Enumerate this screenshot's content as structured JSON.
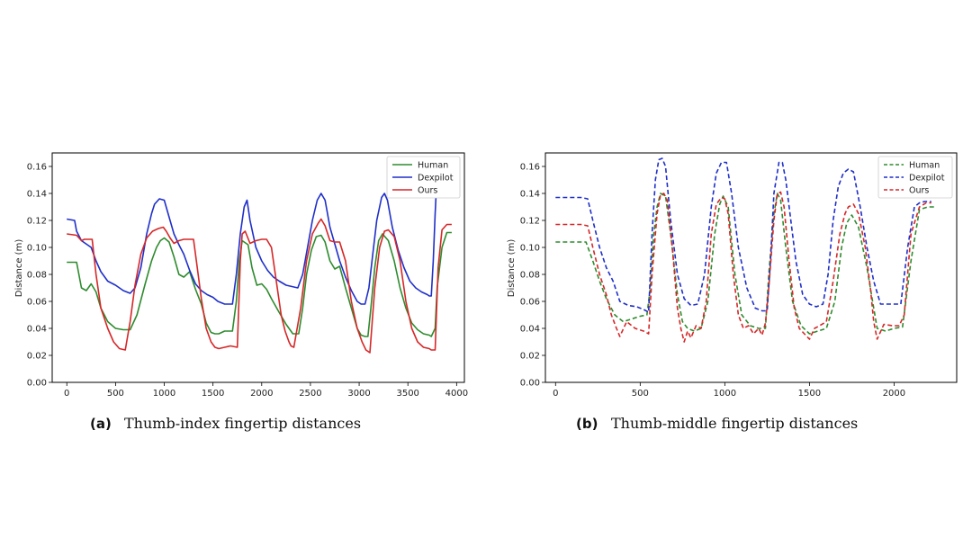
{
  "chart_data": [
    {
      "type": "line",
      "caption_letter": "(a)",
      "caption_text": "Thumb-index fingertip distances",
      "ylabel": "Distance (m)",
      "xlim": [
        -150,
        4080
      ],
      "ylim": [
        0,
        0.17
      ],
      "xticks": [
        0,
        500,
        1000,
        1500,
        2000,
        2500,
        3000,
        3500,
        4000
      ],
      "yticks": [
        0.0,
        0.02,
        0.04,
        0.06,
        0.08,
        0.1,
        0.12,
        0.14,
        0.16
      ],
      "ytick_labels": [
        "0.00",
        "0.02",
        "0.04",
        "0.06",
        "0.08",
        "0.10",
        "0.12",
        "0.14",
        "0.16"
      ],
      "grid": false,
      "legend_position": "top-right",
      "series": [
        {
          "name": "Human",
          "color": "#2e8b2e",
          "dash": "solid",
          "x": [
            0,
            100,
            150,
            200,
            250,
            300,
            350,
            420,
            500,
            580,
            650,
            720,
            800,
            870,
            920,
            960,
            1000,
            1050,
            1100,
            1150,
            1200,
            1260,
            1320,
            1380,
            1430,
            1480,
            1520,
            1560,
            1620,
            1700,
            1740,
            1770,
            1800,
            1860,
            1900,
            1950,
            2000,
            2050,
            2100,
            2170,
            2250,
            2320,
            2380,
            2420,
            2460,
            2510,
            2560,
            2610,
            2650,
            2700,
            2750,
            2800,
            2860,
            2920,
            2980,
            3020,
            3060,
            3090,
            3120,
            3160,
            3200,
            3240,
            3300,
            3360,
            3420,
            3480,
            3540,
            3600,
            3660,
            3720,
            3740,
            3780,
            3800,
            3850,
            3900,
            3950
          ],
          "y": [
            0.089,
            0.089,
            0.07,
            0.068,
            0.073,
            0.067,
            0.055,
            0.045,
            0.04,
            0.039,
            0.039,
            0.05,
            0.072,
            0.09,
            0.1,
            0.105,
            0.107,
            0.104,
            0.093,
            0.08,
            0.078,
            0.082,
            0.069,
            0.058,
            0.044,
            0.037,
            0.036,
            0.036,
            0.038,
            0.038,
            0.06,
            0.09,
            0.105,
            0.102,
            0.085,
            0.072,
            0.073,
            0.069,
            0.062,
            0.053,
            0.043,
            0.036,
            0.036,
            0.055,
            0.08,
            0.098,
            0.108,
            0.109,
            0.104,
            0.09,
            0.084,
            0.086,
            0.07,
            0.055,
            0.04,
            0.035,
            0.034,
            0.034,
            0.055,
            0.085,
            0.105,
            0.11,
            0.105,
            0.09,
            0.07,
            0.055,
            0.044,
            0.039,
            0.036,
            0.035,
            0.034,
            0.04,
            0.07,
            0.1,
            0.111,
            0.111
          ]
        },
        {
          "name": "Dexpilot",
          "color": "#1f2fc9",
          "dash": "solid",
          "x": [
            0,
            80,
            100,
            150,
            250,
            300,
            350,
            420,
            500,
            580,
            650,
            700,
            760,
            820,
            870,
            900,
            950,
            1000,
            1040,
            1100,
            1150,
            1200,
            1260,
            1320,
            1380,
            1440,
            1500,
            1550,
            1620,
            1700,
            1740,
            1780,
            1820,
            1850,
            1880,
            1940,
            2000,
            2060,
            2120,
            2180,
            2250,
            2310,
            2370,
            2420,
            2470,
            2520,
            2570,
            2610,
            2650,
            2700,
            2760,
            2800,
            2860,
            2920,
            2980,
            3020,
            3060,
            3100,
            3140,
            3180,
            3230,
            3260,
            3290,
            3340,
            3400,
            3460,
            3520,
            3580,
            3640,
            3700,
            3720,
            3740,
            3760,
            3780,
            3790
          ],
          "y": [
            0.121,
            0.12,
            0.112,
            0.105,
            0.1,
            0.09,
            0.082,
            0.075,
            0.072,
            0.068,
            0.066,
            0.07,
            0.085,
            0.11,
            0.125,
            0.132,
            0.136,
            0.135,
            0.125,
            0.11,
            0.102,
            0.095,
            0.083,
            0.073,
            0.068,
            0.065,
            0.063,
            0.06,
            0.058,
            0.058,
            0.08,
            0.11,
            0.13,
            0.135,
            0.12,
            0.1,
            0.09,
            0.083,
            0.078,
            0.075,
            0.072,
            0.071,
            0.07,
            0.08,
            0.1,
            0.12,
            0.135,
            0.14,
            0.135,
            0.115,
            0.1,
            0.09,
            0.078,
            0.068,
            0.06,
            0.058,
            0.058,
            0.07,
            0.095,
            0.12,
            0.137,
            0.14,
            0.135,
            0.115,
            0.098,
            0.085,
            0.075,
            0.07,
            0.067,
            0.065,
            0.064,
            0.064,
            0.09,
            0.125,
            0.14
          ]
        },
        {
          "name": "Ours",
          "color": "#d62728",
          "dash": "solid",
          "x": [
            0,
            100,
            150,
            180,
            260,
            300,
            350,
            420,
            480,
            540,
            600,
            650,
            700,
            760,
            820,
            880,
            940,
            990,
            1020,
            1060,
            1100,
            1150,
            1200,
            1250,
            1300,
            1330,
            1380,
            1430,
            1480,
            1520,
            1560,
            1620,
            1680,
            1750,
            1780,
            1800,
            1830,
            1880,
            1940,
            2000,
            2050,
            2100,
            2150,
            2200,
            2240,
            2280,
            2300,
            2330,
            2400,
            2460,
            2520,
            2580,
            2610,
            2650,
            2700,
            2750,
            2800,
            2860,
            2920,
            2980,
            3030,
            3070,
            3090,
            3110,
            3160,
            3210,
            3260,
            3300,
            3360,
            3420,
            3480,
            3540,
            3600,
            3660,
            3720,
            3740,
            3760,
            3780,
            3810,
            3850,
            3900,
            3950
          ],
          "y": [
            0.11,
            0.109,
            0.105,
            0.106,
            0.106,
            0.08,
            0.055,
            0.04,
            0.03,
            0.025,
            0.024,
            0.045,
            0.072,
            0.095,
            0.107,
            0.112,
            0.114,
            0.115,
            0.112,
            0.107,
            0.103,
            0.105,
            0.106,
            0.106,
            0.106,
            0.09,
            0.062,
            0.04,
            0.03,
            0.026,
            0.025,
            0.026,
            0.027,
            0.026,
            0.09,
            0.11,
            0.112,
            0.103,
            0.105,
            0.106,
            0.106,
            0.1,
            0.075,
            0.05,
            0.038,
            0.03,
            0.027,
            0.026,
            0.055,
            0.09,
            0.11,
            0.118,
            0.121,
            0.116,
            0.105,
            0.104,
            0.104,
            0.09,
            0.06,
            0.04,
            0.03,
            0.024,
            0.023,
            0.022,
            0.07,
            0.1,
            0.112,
            0.113,
            0.108,
            0.09,
            0.06,
            0.04,
            0.03,
            0.026,
            0.025,
            0.024,
            0.024,
            0.024,
            0.085,
            0.113,
            0.117,
            0.117
          ]
        }
      ]
    },
    {
      "type": "line",
      "caption_letter": "(b)",
      "caption_text": "Thumb-middle fingertip distances",
      "ylabel": "Distance (m)",
      "xlim": [
        -60,
        2370
      ],
      "ylim": [
        0,
        0.17
      ],
      "xticks": [
        0,
        500,
        1000,
        1500,
        2000
      ],
      "yticks": [
        0.0,
        0.02,
        0.04,
        0.06,
        0.08,
        0.1,
        0.12,
        0.14,
        0.16
      ],
      "ytick_labels": [
        "0.00",
        "0.02",
        "0.04",
        "0.06",
        "0.08",
        "0.10",
        "0.12",
        "0.14",
        "0.16"
      ],
      "grid": false,
      "legend_position": "top-right",
      "series": [
        {
          "name": "Human",
          "color": "#2e8b2e",
          "dash": "dashed",
          "x": [
            0,
            100,
            150,
            180,
            220,
            260,
            300,
            350,
            400,
            450,
            500,
            540,
            560,
            580,
            600,
            620,
            650,
            680,
            720,
            750,
            780,
            820,
            860,
            900,
            940,
            970,
            990,
            1020,
            1060,
            1100,
            1150,
            1200,
            1240,
            1260,
            1290,
            1310,
            1330,
            1360,
            1400,
            1450,
            1500,
            1550,
            1600,
            1650,
            1690,
            1720,
            1750,
            1790,
            1840,
            1880,
            1900,
            1950,
            2000,
            2050,
            2100,
            2150,
            2200,
            2240
          ],
          "y": [
            0.104,
            0.104,
            0.104,
            0.104,
            0.09,
            0.075,
            0.062,
            0.05,
            0.045,
            0.047,
            0.049,
            0.05,
            0.07,
            0.11,
            0.13,
            0.14,
            0.138,
            0.11,
            0.065,
            0.045,
            0.04,
            0.038,
            0.04,
            0.06,
            0.11,
            0.132,
            0.138,
            0.13,
            0.08,
            0.05,
            0.042,
            0.04,
            0.04,
            0.08,
            0.125,
            0.14,
            0.135,
            0.1,
            0.06,
            0.042,
            0.036,
            0.038,
            0.04,
            0.06,
            0.1,
            0.118,
            0.124,
            0.115,
            0.085,
            0.055,
            0.04,
            0.038,
            0.04,
            0.041,
            0.09,
            0.128,
            0.13,
            0.13
          ]
        },
        {
          "name": "Dexpilot",
          "color": "#1f2fc9",
          "dash": "dashed",
          "x": [
            0,
            100,
            150,
            190,
            220,
            260,
            300,
            340,
            380,
            430,
            480,
            520,
            550,
            570,
            590,
            610,
            630,
            650,
            680,
            720,
            760,
            800,
            840,
            880,
            920,
            950,
            980,
            1010,
            1040,
            1080,
            1130,
            1180,
            1220,
            1250,
            1270,
            1290,
            1320,
            1340,
            1360,
            1390,
            1420,
            1460,
            1500,
            1540,
            1580,
            1610,
            1640,
            1670,
            1700,
            1730,
            1760,
            1800,
            1840,
            1880,
            1920,
            1960,
            2000,
            2040,
            2080,
            2120,
            2150,
            2180,
            2220
          ],
          "y": [
            0.137,
            0.137,
            0.137,
            0.136,
            0.12,
            0.1,
            0.085,
            0.075,
            0.06,
            0.057,
            0.056,
            0.054,
            0.052,
            0.11,
            0.15,
            0.165,
            0.166,
            0.16,
            0.12,
            0.08,
            0.062,
            0.057,
            0.058,
            0.08,
            0.13,
            0.155,
            0.163,
            0.163,
            0.14,
            0.1,
            0.07,
            0.055,
            0.053,
            0.053,
            0.09,
            0.14,
            0.163,
            0.163,
            0.15,
            0.12,
            0.09,
            0.065,
            0.058,
            0.056,
            0.058,
            0.08,
            0.12,
            0.145,
            0.155,
            0.158,
            0.156,
            0.13,
            0.1,
            0.075,
            0.058,
            0.058,
            0.058,
            0.058,
            0.1,
            0.13,
            0.133,
            0.134,
            0.134
          ]
        },
        {
          "name": "Ours",
          "color": "#d62728",
          "dash": "dashed",
          "x": [
            0,
            100,
            150,
            190,
            220,
            260,
            300,
            330,
            360,
            380,
            420,
            470,
            520,
            550,
            570,
            600,
            620,
            640,
            660,
            690,
            720,
            740,
            760,
            780,
            800,
            830,
            860,
            890,
            920,
            950,
            980,
            1000,
            1020,
            1050,
            1080,
            1110,
            1140,
            1170,
            1200,
            1220,
            1240,
            1260,
            1290,
            1310,
            1330,
            1350,
            1380,
            1410,
            1440,
            1470,
            1500,
            1530,
            1560,
            1600,
            1640,
            1680,
            1710,
            1730,
            1760,
            1790,
            1830,
            1860,
            1880,
            1900,
            1940,
            1990,
            2030,
            2060,
            2100,
            2150,
            2190,
            2220
          ],
          "y": [
            0.117,
            0.117,
            0.117,
            0.116,
            0.1,
            0.08,
            0.065,
            0.05,
            0.04,
            0.034,
            0.045,
            0.04,
            0.038,
            0.036,
            0.08,
            0.125,
            0.139,
            0.14,
            0.135,
            0.1,
            0.055,
            0.04,
            0.03,
            0.038,
            0.033,
            0.042,
            0.04,
            0.06,
            0.11,
            0.132,
            0.137,
            0.136,
            0.125,
            0.08,
            0.05,
            0.04,
            0.042,
            0.036,
            0.04,
            0.035,
            0.044,
            0.07,
            0.12,
            0.14,
            0.141,
            0.13,
            0.09,
            0.055,
            0.04,
            0.036,
            0.032,
            0.04,
            0.042,
            0.045,
            0.075,
            0.11,
            0.125,
            0.13,
            0.132,
            0.125,
            0.1,
            0.07,
            0.045,
            0.032,
            0.043,
            0.042,
            0.042,
            0.05,
            0.11,
            0.13,
            0.133,
            0.133
          ]
        }
      ]
    }
  ]
}
